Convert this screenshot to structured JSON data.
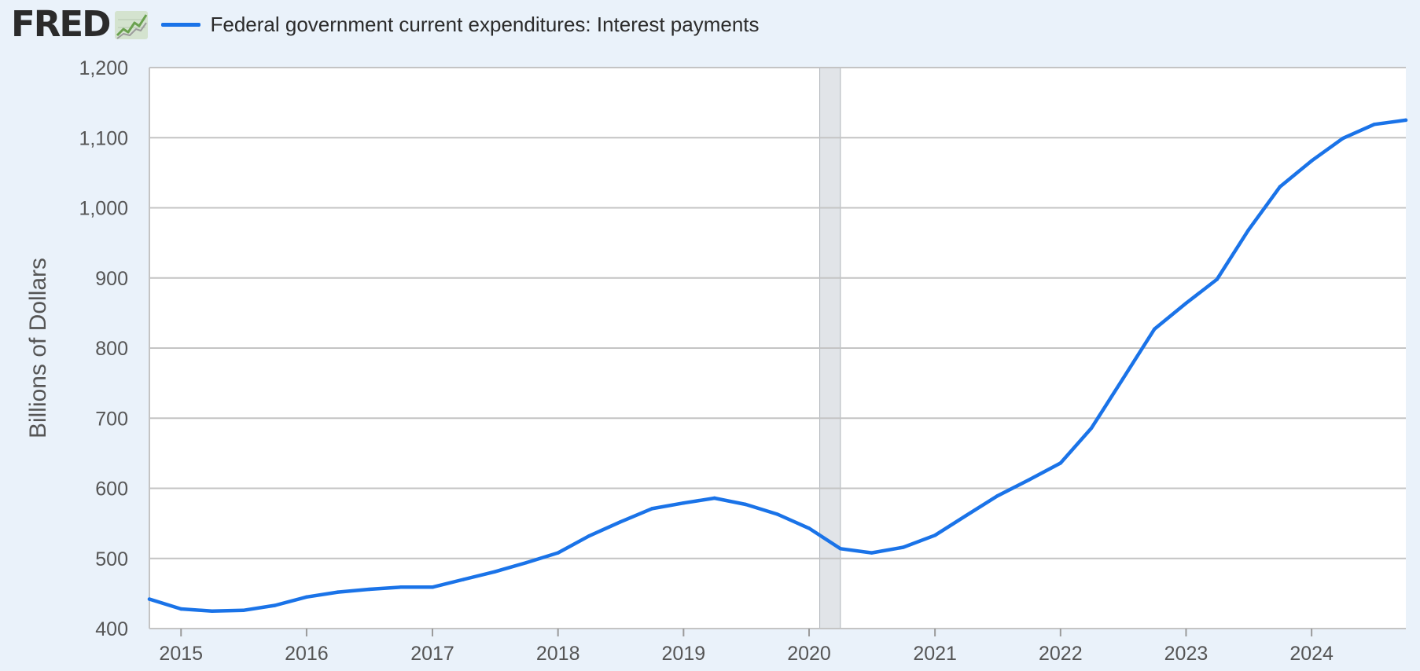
{
  "header": {
    "logo_text": "FRED",
    "logo_icon": "line-chart-icon"
  },
  "colors": {
    "series": "#1a73e8",
    "grid": "#c4c4c4",
    "recession": "#e1e4e8",
    "background": "#eaf2fa",
    "plot_background": "#ffffff"
  },
  "chart_data": {
    "type": "line",
    "title": "",
    "xlabel": "",
    "ylabel": "Billions of Dollars",
    "ylim": [
      400,
      1200
    ],
    "yticks": [
      400,
      500,
      600,
      700,
      800,
      900,
      1000,
      1100,
      1200
    ],
    "ytick_labels": [
      "400",
      "500",
      "600",
      "700",
      "800",
      "900",
      "1,000",
      "1,100",
      "1,200"
    ],
    "xlim": [
      "2014-10-01",
      "2024-10-01"
    ],
    "xticks": [
      "2015",
      "2016",
      "2017",
      "2018",
      "2019",
      "2020",
      "2021",
      "2022",
      "2023",
      "2024"
    ],
    "grid": true,
    "legend_position": "top-left",
    "recessions": [
      {
        "start": "2020-02-01",
        "end": "2020-04-01"
      }
    ],
    "series": [
      {
        "name": "Federal government current expenditures: Interest payments",
        "color": "#1a73e8",
        "x": [
          "2014-10-01",
          "2015-01-01",
          "2015-04-01",
          "2015-07-01",
          "2015-10-01",
          "2016-01-01",
          "2016-04-01",
          "2016-07-01",
          "2016-10-01",
          "2017-01-01",
          "2017-04-01",
          "2017-07-01",
          "2017-10-01",
          "2018-01-01",
          "2018-04-01",
          "2018-07-01",
          "2018-10-01",
          "2019-01-01",
          "2019-04-01",
          "2019-07-01",
          "2019-10-01",
          "2020-01-01",
          "2020-04-01",
          "2020-07-01",
          "2020-10-01",
          "2021-01-01",
          "2021-04-01",
          "2021-07-01",
          "2021-10-01",
          "2022-01-01",
          "2022-04-01",
          "2022-07-01",
          "2022-10-01",
          "2023-01-01",
          "2023-04-01",
          "2023-07-01",
          "2023-10-01",
          "2024-01-01",
          "2024-04-01",
          "2024-07-01",
          "2024-10-01"
        ],
        "values": [
          442,
          428,
          425,
          426,
          433,
          445,
          452,
          456,
          459,
          459,
          470,
          481,
          494,
          508,
          532,
          552,
          571,
          579,
          586,
          577,
          563,
          543,
          514,
          508,
          516,
          533,
          561,
          589,
          612,
          636,
          686,
          756,
          827,
          864,
          898,
          968,
          1030,
          1067,
          1099,
          1119,
          1125
        ]
      }
    ]
  }
}
